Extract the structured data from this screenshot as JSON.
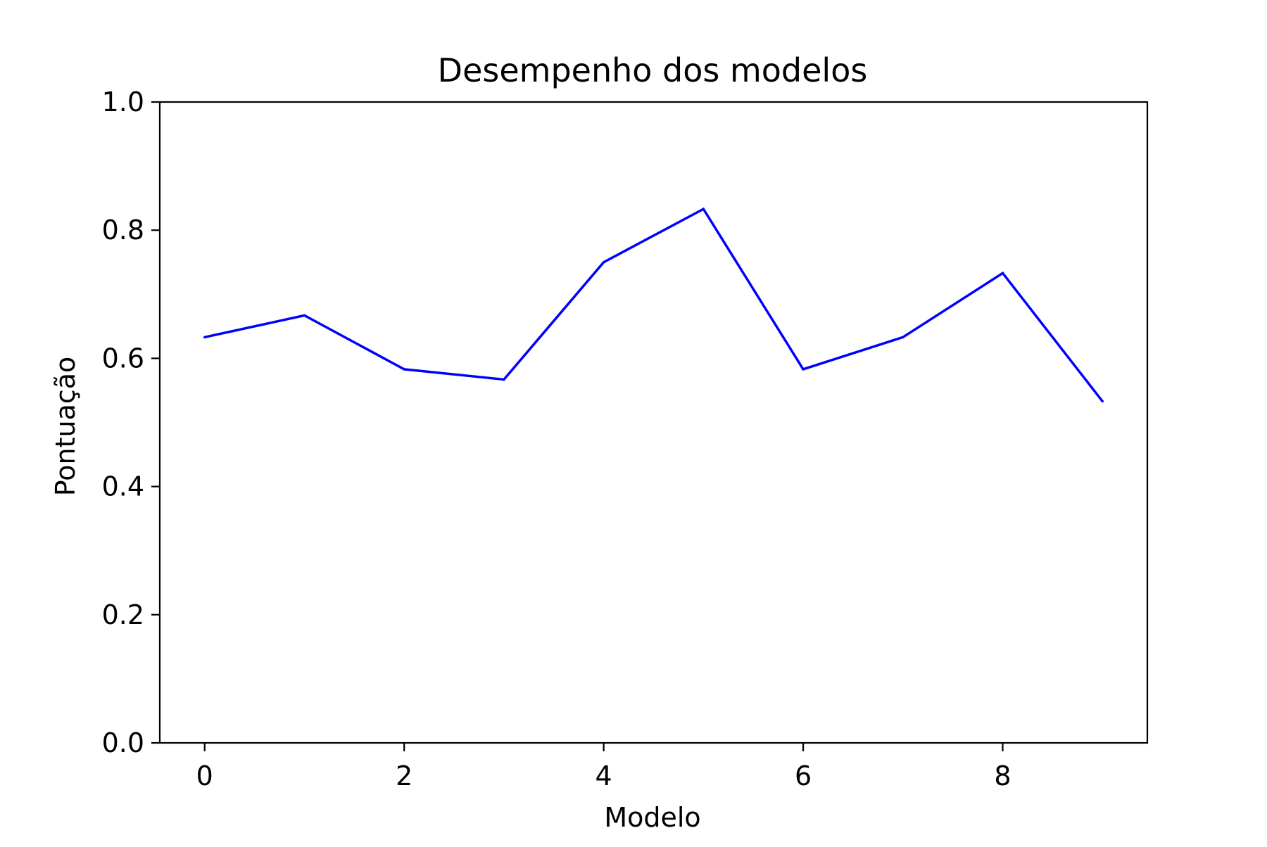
{
  "chart_data": {
    "type": "line",
    "title": "Desempenho dos modelos",
    "xlabel": "Modelo",
    "ylabel": "Pontuação",
    "x": [
      0,
      1,
      2,
      3,
      4,
      5,
      6,
      7,
      8,
      9
    ],
    "series": [
      {
        "color": "#0000ff",
        "values": [
          0.633,
          0.667,
          0.583,
          0.567,
          0.75,
          0.833,
          0.583,
          0.633,
          0.733,
          0.533
        ]
      }
    ],
    "xlim": [
      -0.45,
      9.45
    ],
    "ylim": [
      0.0,
      1.0
    ],
    "xticks": [
      0,
      2,
      4,
      6,
      8
    ],
    "xtick_labels": [
      "0",
      "2",
      "4",
      "6",
      "8"
    ],
    "yticks": [
      0.0,
      0.2,
      0.4,
      0.6,
      0.8,
      1.0
    ],
    "ytick_labels": [
      "0.0",
      "0.2",
      "0.4",
      "0.6",
      "0.8",
      "1.0"
    ],
    "grid": false,
    "legend": "none"
  }
}
